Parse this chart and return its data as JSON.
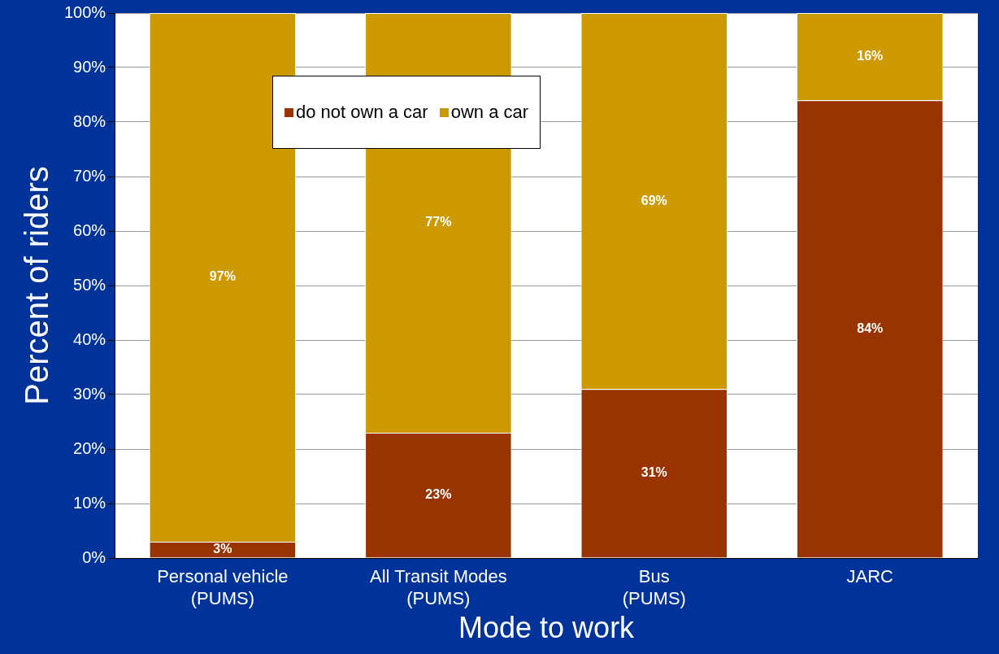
{
  "chart_data": {
    "type": "bar",
    "stacked": true,
    "xlabel": "Mode to work",
    "ylabel": "Percent of riders",
    "categories": [
      "Personal vehicle\n(PUMS)",
      "All Transit Modes\n(PUMS)",
      "Bus\n(PUMS)",
      "JARC"
    ],
    "series": [
      {
        "name": "do not own a car",
        "color": "#993300",
        "values": [
          3,
          23,
          31,
          84
        ],
        "value_labels": [
          "3%",
          "23%",
          "31%",
          "84%"
        ]
      },
      {
        "name": "own a car",
        "color": "#cc9900",
        "values": [
          97,
          77,
          69,
          16
        ],
        "value_labels": [
          "97%",
          "77%",
          "69%",
          "16%"
        ]
      }
    ],
    "ylim": [
      0,
      100
    ],
    "yticks": [
      {
        "value": 0,
        "label": "0%"
      },
      {
        "value": 10,
        "label": "10%"
      },
      {
        "value": 20,
        "label": "20%"
      },
      {
        "value": 30,
        "label": "30%"
      },
      {
        "value": 40,
        "label": "40%"
      },
      {
        "value": 50,
        "label": "50%"
      },
      {
        "value": 60,
        "label": "60%"
      },
      {
        "value": 70,
        "label": "70%"
      },
      {
        "value": 80,
        "label": "80%"
      },
      {
        "value": 90,
        "label": "90%"
      },
      {
        "value": 100,
        "label": "100%"
      }
    ],
    "grid": "y",
    "legend": "top"
  }
}
